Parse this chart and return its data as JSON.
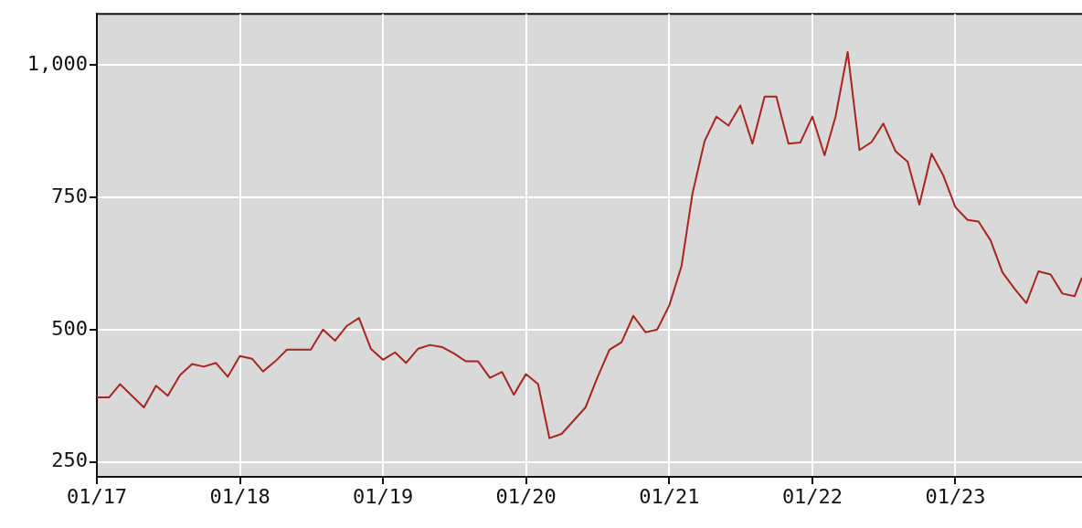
{
  "chart_data": {
    "type": "line",
    "x": [
      "2017-01",
      "2017-02",
      "2017-03",
      "2017-05",
      "2017-06",
      "2017-07",
      "2017-08",
      "2017-09",
      "2017-10",
      "2017-11",
      "2017-12",
      "2018-01",
      "2018-02",
      "2018-03",
      "2018-04",
      "2018-05",
      "2018-07",
      "2018-08",
      "2018-09",
      "2018-10",
      "2018-11",
      "2018-12",
      "2019-01",
      "2019-02",
      "2019-03",
      "2019-04",
      "2019-05",
      "2019-06",
      "2019-07",
      "2019-08",
      "2019-09",
      "2019-10",
      "2019-11",
      "2019-12",
      "2020-01",
      "2020-02",
      "2020-03",
      "2020-04",
      "2020-06",
      "2020-07",
      "2020-08",
      "2020-09",
      "2020-10",
      "2020-11",
      "2020-12",
      "2021-01",
      "2021-02",
      "2021-03",
      "2021-04",
      "2021-05",
      "2021-06",
      "2021-07",
      "2021-08",
      "2021-09",
      "2021-10",
      "2021-11",
      "2021-12",
      "2022-01",
      "2022-02",
      "2022-03",
      "2022-04",
      "2022-05",
      "2022-06",
      "2022-07",
      "2022-08",
      "2022-09",
      "2022-10",
      "2022-11",
      "2022-12",
      "2023-01",
      "2023-02",
      "2023-03",
      "2023-04",
      "2023-05",
      "2023-06",
      "2023-07",
      "2023-08",
      "2023-09",
      "2023-10",
      "2023-11",
      "2023-11-20"
    ],
    "series": [
      {
        "color": "#a8251f",
        "values": [
          372,
          372,
          397,
          353,
          394,
          375,
          414,
          435,
          430,
          437,
          411,
          450,
          445,
          421,
          440,
          462,
          462,
          500,
          479,
          507,
          522,
          464,
          443,
          457,
          437,
          464,
          471,
          467,
          455,
          440,
          440,
          409,
          420,
          377,
          416,
          397,
          295,
          303,
          353,
          409,
          462,
          476,
          526,
          495,
          500,
          546,
          620,
          757,
          856,
          902,
          885,
          923,
          851,
          940,
          940,
          851,
          853,
          902,
          829,
          902,
          1024,
          839,
          854,
          889,
          837,
          817,
          736,
          832,
          791,
          731,
          707,
          704,
          668,
          608,
          577,
          550,
          610,
          604,
          568,
          563,
          598
        ]
      }
    ],
    "xlim": [
      "2017-01",
      "2023-11-20"
    ],
    "xticks": [
      {
        "value": "2017-01",
        "label": "01/17"
      },
      {
        "value": "2018-01",
        "label": "01/18"
      },
      {
        "value": "2019-01",
        "label": "01/19"
      },
      {
        "value": "2020-01",
        "label": "01/20"
      },
      {
        "value": "2021-01",
        "label": "01/21"
      },
      {
        "value": "2022-01",
        "label": "01/22"
      },
      {
        "value": "2023-01",
        "label": "01/23"
      }
    ],
    "ylim": [
      222,
      1096
    ],
    "yticks": [
      250,
      500,
      750,
      {
        "value": 1000,
        "label": "1,000"
      }
    ],
    "grid": true,
    "legend": false,
    "marker": "none",
    "line_style": "solid"
  }
}
